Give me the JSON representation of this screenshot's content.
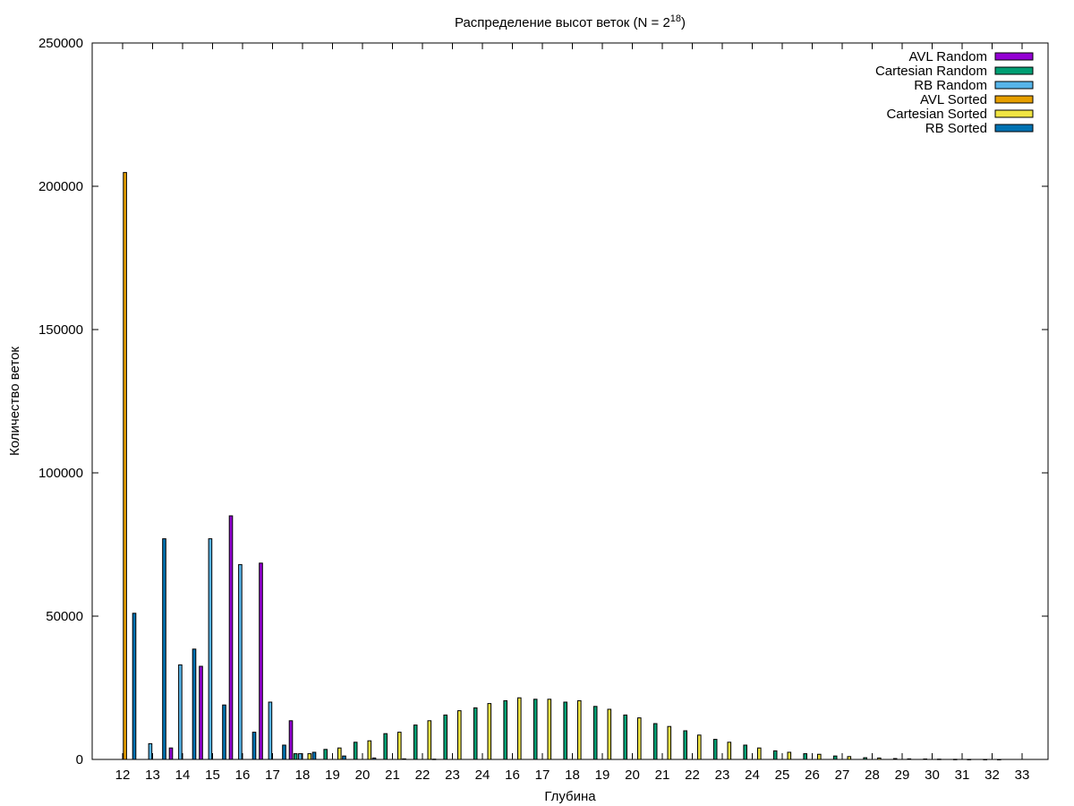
{
  "chart_data": {
    "type": "bar",
    "title": "Распределение высот веток (N = 2",
    "title_exponent": "18",
    "title_close": ")",
    "xlabel": "Глубина",
    "ylabel": "Количество веток",
    "ylim": [
      0,
      250000
    ],
    "y_ticks": [
      "0",
      "50000",
      "100000",
      "150000",
      "200000",
      "250000"
    ],
    "grid": false,
    "legend_position": "top-right",
    "categories": [
      "12",
      "13",
      "14",
      "15",
      "16",
      "17",
      "18",
      "19",
      "20",
      "21",
      "22",
      "23",
      "24",
      "16",
      "17",
      "18",
      "19",
      "20",
      "21",
      "22",
      "23",
      "24",
      "25",
      "26",
      "27",
      "28",
      "29",
      "30",
      "31",
      "32",
      "33"
    ],
    "series": [
      {
        "name": "AVL Random",
        "color": "#9400d3",
        "values": [
          0,
          0,
          4000,
          32500,
          85000,
          68500,
          13500,
          0,
          0,
          0,
          0,
          0,
          0,
          0,
          0,
          0,
          0,
          0,
          0,
          0,
          0,
          0,
          0,
          0,
          0,
          0,
          0,
          0,
          0,
          0,
          0
        ]
      },
      {
        "name": "Cartesian Random",
        "color": "#009e73",
        "values": [
          0,
          0,
          0,
          0,
          0,
          0,
          2000,
          3500,
          6000,
          9000,
          12000,
          15500,
          18000,
          20500,
          21000,
          20000,
          18500,
          15500,
          12500,
          10000,
          7000,
          5000,
          3000,
          2000,
          1200,
          600,
          300,
          150,
          50,
          20,
          0
        ]
      },
      {
        "name": "RB Random",
        "color": "#56b4e9",
        "values": [
          0,
          5500,
          33000,
          77000,
          68000,
          20000,
          2000,
          0,
          0,
          0,
          0,
          0,
          0,
          0,
          0,
          0,
          0,
          0,
          0,
          0,
          0,
          0,
          0,
          0,
          0,
          0,
          0,
          0,
          0,
          0,
          0
        ]
      },
      {
        "name": "AVL Sorted",
        "color": "#e69f00",
        "values": [
          204800,
          0,
          0,
          0,
          0,
          0,
          0,
          0,
          0,
          0,
          0,
          0,
          0,
          0,
          0,
          0,
          0,
          0,
          0,
          0,
          0,
          0,
          0,
          0,
          0,
          0,
          0,
          0,
          0,
          0,
          0
        ]
      },
      {
        "name": "Cartesian Sorted",
        "color": "#f0e442",
        "values": [
          0,
          0,
          0,
          0,
          0,
          0,
          2000,
          4000,
          6500,
          9500,
          13500,
          17000,
          19500,
          21500,
          21000,
          20500,
          17500,
          14500,
          11500,
          8500,
          6000,
          4000,
          2500,
          1800,
          1000,
          500,
          200,
          100,
          30,
          10,
          0
        ]
      },
      {
        "name": "RB Sorted",
        "color": "#0072b2",
        "values": [
          51000,
          77000,
          38500,
          19000,
          9500,
          5000,
          2500,
          1200,
          500,
          200,
          100,
          0,
          0,
          0,
          0,
          0,
          0,
          0,
          0,
          0,
          0,
          0,
          0,
          0,
          0,
          0,
          0,
          0,
          0,
          0,
          0
        ]
      }
    ]
  }
}
